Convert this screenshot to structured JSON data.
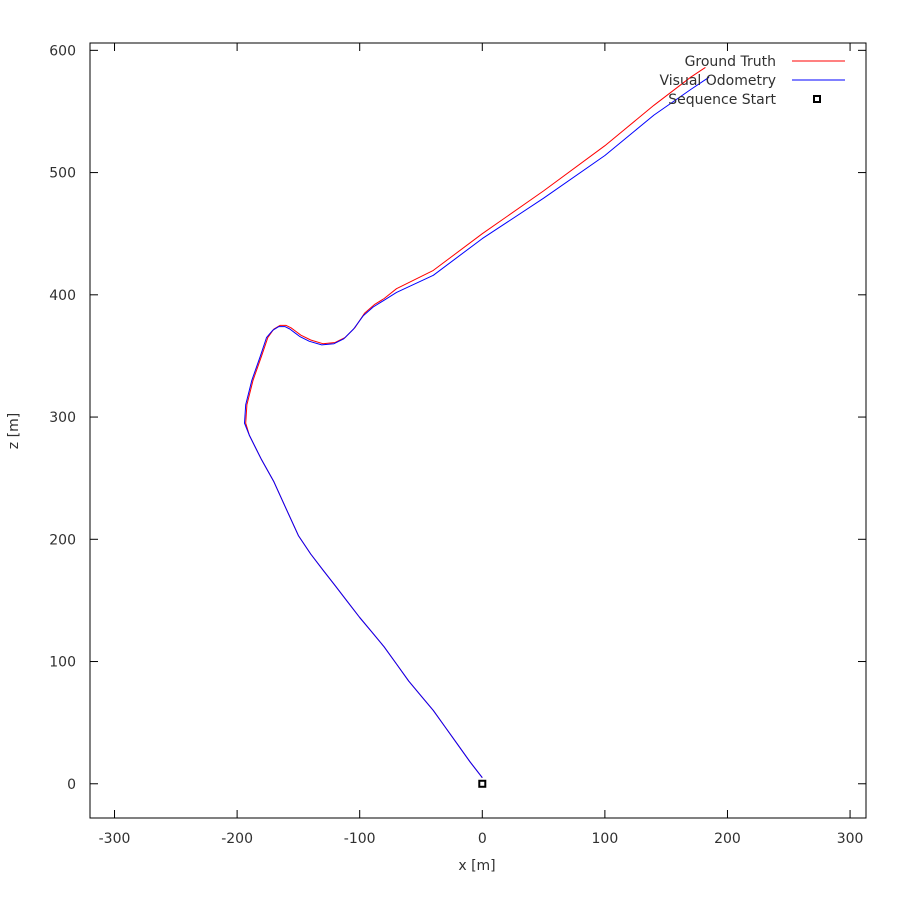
{
  "chart_data": {
    "type": "line",
    "title": "",
    "xlabel": "x [m]",
    "ylabel": "z [m]",
    "xlim": [
      -320,
      313
    ],
    "ylim": [
      -28,
      606
    ],
    "xticks": [
      -300,
      -200,
      -100,
      0,
      100,
      200,
      300
    ],
    "yticks": [
      0,
      100,
      200,
      300,
      400,
      500,
      600
    ],
    "xtick_labels": [
      "-300",
      "-200",
      "-100",
      "0",
      "100",
      "200",
      "300"
    ],
    "ytick_labels": [
      "0",
      "100",
      "200",
      "300",
      "400",
      "500",
      "600"
    ],
    "grid": false,
    "legend_position": "top-right",
    "series": [
      {
        "name": "Ground Truth",
        "color": "#ff0000",
        "marker": "line",
        "x": [
          0,
          -10,
          -20,
          -30,
          -40,
          -50,
          -60,
          -70,
          -80,
          -90,
          -100,
          -110,
          -120,
          -130,
          -140,
          -150,
          -160,
          -170,
          -180,
          -185,
          -190,
          -193,
          -192,
          -187,
          -180,
          -175,
          -170,
          -165,
          -160,
          -156,
          -152,
          -148,
          -140,
          -130,
          -120,
          -112,
          -104,
          -96,
          -88,
          -80,
          -70,
          -40,
          0,
          50,
          100,
          140,
          170,
          182
        ],
        "y": [
          5,
          18,
          32,
          46,
          60,
          72,
          84,
          98,
          112,
          124,
          136,
          149,
          162,
          175,
          188,
          203,
          225,
          247,
          265,
          275,
          285,
          295,
          310,
          330,
          350,
          365,
          372,
          375,
          375,
          373,
          370,
          367,
          363,
          360,
          361,
          365,
          373,
          385,
          392,
          397,
          405,
          420,
          450,
          485,
          522,
          555,
          578,
          586
        ]
      },
      {
        "name": "Visual Odometry",
        "color": "#0000ff",
        "marker": "line",
        "x": [
          0,
          -10,
          -20,
          -30,
          -40,
          -50,
          -60,
          -70,
          -80,
          -90,
          -100,
          -110,
          -120,
          -130,
          -140,
          -150,
          -160,
          -170,
          -180,
          -185,
          -190,
          -194,
          -193,
          -188,
          -181,
          -176,
          -171,
          -166,
          -161,
          -157,
          -153,
          -149,
          -141,
          -131,
          -121,
          -113,
          -105,
          -97,
          -89,
          -81,
          -70,
          -40,
          0,
          50,
          100,
          140,
          170,
          185
        ],
        "y": [
          5,
          18,
          32,
          46,
          60,
          72,
          84,
          98,
          112,
          124,
          136,
          149,
          162,
          175,
          188,
          203,
          225,
          247,
          265,
          275,
          285,
          295,
          310,
          330,
          350,
          365,
          371,
          374,
          374,
          372,
          369,
          366,
          362,
          359,
          360,
          364,
          372,
          383,
          390,
          395,
          402,
          416,
          446,
          479,
          514,
          547,
          568,
          578
        ]
      },
      {
        "name": "Sequence Start",
        "color": "#000000",
        "marker": "square",
        "x": [
          0
        ],
        "y": [
          0
        ]
      }
    ]
  }
}
